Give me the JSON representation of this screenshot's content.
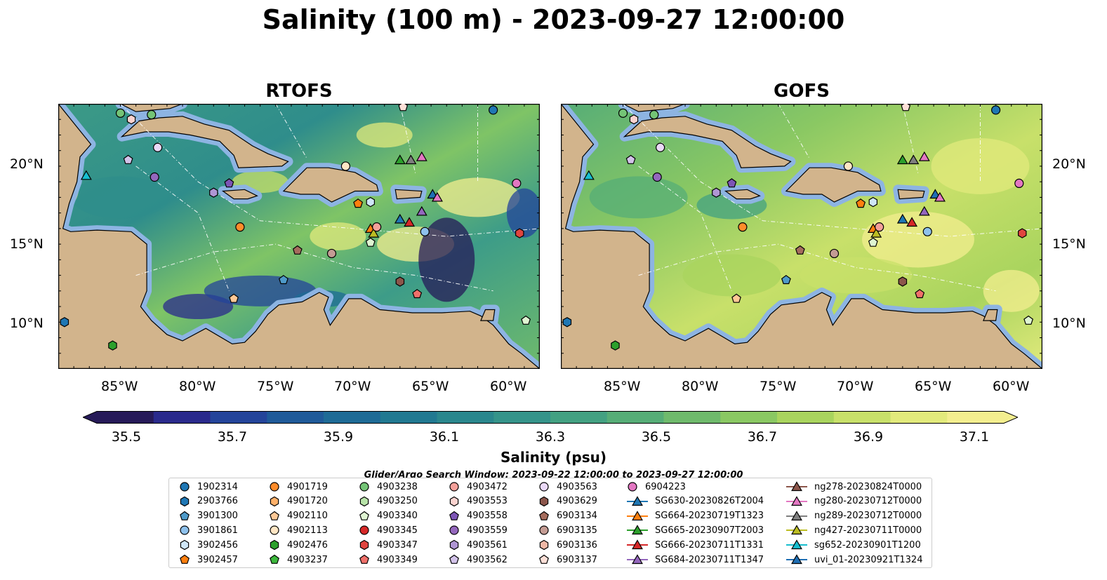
{
  "title": "Salinity (100 m) - 2023-09-27 12:00:00",
  "panels": [
    {
      "title": "RTOFS",
      "model": "rtofs"
    },
    {
      "title": "GOFS",
      "model": "gofs"
    }
  ],
  "map": {
    "lon_labels": [
      "85°W",
      "80°W",
      "75°W",
      "70°W",
      "65°W",
      "60°W"
    ],
    "lat_labels": [
      "20°N",
      "15°N",
      "10°N"
    ],
    "extent": {
      "lon": [
        -89,
        -58
      ],
      "lat": [
        7,
        24
      ]
    }
  },
  "colorbar": {
    "label": "Salinity (psu)",
    "ticks": [
      "35.5",
      "35.7",
      "35.9",
      "36.1",
      "36.3",
      "36.5",
      "36.7",
      "36.9",
      "37.1"
    ],
    "min": 35.4,
    "max": 37.2,
    "step": 0.1,
    "extend": "both",
    "colors": [
      "#261a58",
      "#2a2a8c",
      "#24449a",
      "#1f5a99",
      "#1e6b96",
      "#217991",
      "#2a878d",
      "#35948a",
      "#43a182",
      "#56ad77",
      "#6fba6c",
      "#8ac863",
      "#a9d45e",
      "#c8e06a",
      "#e2ea7c",
      "#f3ee8f"
    ]
  },
  "search_window": "Glider/Argo Search Window: 2023-09-22 12:00:00 to 2023-09-27 12:00:00",
  "legend": [
    {
      "label": "1902314",
      "color": "#1f77b4",
      "shape": "circle"
    },
    {
      "label": "2903766",
      "color": "#1f77b4",
      "shape": "hexagon"
    },
    {
      "label": "3901300",
      "color": "#4e9ac9",
      "shape": "pentagon"
    },
    {
      "label": "3901861",
      "color": "#8ec1ec",
      "shape": "circle"
    },
    {
      "label": "3902456",
      "color": "#cfe6f7",
      "shape": "hexagon"
    },
    {
      "label": "3902457",
      "color": "#ff7f0e",
      "shape": "pentagon"
    },
    {
      "label": "4901719",
      "color": "#ff8c2a",
      "shape": "circle"
    },
    {
      "label": "4901720",
      "color": "#ffb16a",
      "shape": "hexagon"
    },
    {
      "label": "4902110",
      "color": "#ffc896",
      "shape": "pentagon"
    },
    {
      "label": "4902113",
      "color": "#ffe6c4",
      "shape": "circle"
    },
    {
      "label": "4902476",
      "color": "#2ca02c",
      "shape": "hexagon"
    },
    {
      "label": "4903237",
      "color": "#3cb83c",
      "shape": "pentagon"
    },
    {
      "label": "4903238",
      "color": "#74c476",
      "shape": "circle"
    },
    {
      "label": "4903250",
      "color": "#b7e3a8",
      "shape": "hexagon"
    },
    {
      "label": "4903340",
      "color": "#dff5d2",
      "shape": "pentagon"
    },
    {
      "label": "4903345",
      "color": "#d62728",
      "shape": "circle"
    },
    {
      "label": "4903347",
      "color": "#e0453f",
      "shape": "hexagon"
    },
    {
      "label": "4903349",
      "color": "#f0706a",
      "shape": "pentagon"
    },
    {
      "label": "4903472",
      "color": "#f4a09a",
      "shape": "circle"
    },
    {
      "label": "4903553",
      "color": "#fbd3cf",
      "shape": "hexagon"
    },
    {
      "label": "4903558",
      "color": "#7d55b5",
      "shape": "pentagon"
    },
    {
      "label": "4903559",
      "color": "#9467bd",
      "shape": "circle"
    },
    {
      "label": "4903561",
      "color": "#b096d4",
      "shape": "hexagon"
    },
    {
      "label": "4903562",
      "color": "#d3c3ea",
      "shape": "pentagon"
    },
    {
      "label": "4903563",
      "color": "#ead9f8",
      "shape": "circle"
    },
    {
      "label": "4903629",
      "color": "#8c564b",
      "shape": "hexagon"
    },
    {
      "label": "6903134",
      "color": "#a56c5d",
      "shape": "pentagon"
    },
    {
      "label": "6903135",
      "color": "#c49c94",
      "shape": "circle"
    },
    {
      "label": "6903136",
      "color": "#f0b8a6",
      "shape": "hexagon"
    },
    {
      "label": "6903137",
      "color": "#fde0d8",
      "shape": "pentagon"
    },
    {
      "label": "6904223",
      "color": "#e377c2",
      "shape": "circle"
    },
    {
      "label": "SG630-20230826T2004",
      "color": "#1f77b4",
      "shape": "triangle"
    },
    {
      "label": "SG664-20230719T1323",
      "color": "#ff7f0e",
      "shape": "triangle"
    },
    {
      "label": "SG665-20230907T2003",
      "color": "#2ca02c",
      "shape": "triangle"
    },
    {
      "label": "SG666-20230711T1331",
      "color": "#d62728",
      "shape": "triangle"
    },
    {
      "label": "SG684-20230711T1347",
      "color": "#9467bd",
      "shape": "triangle"
    },
    {
      "label": "ng278-20230824T0000",
      "color": "#8c564b",
      "shape": "triangle"
    },
    {
      "label": "ng280-20230712T0000",
      "color": "#e377c2",
      "shape": "triangle"
    },
    {
      "label": "ng289-20230712T0000",
      "color": "#7f7f7f",
      "shape": "triangle"
    },
    {
      "label": "ng427-20230711T0000",
      "color": "#bcbd22",
      "shape": "triangle"
    },
    {
      "label": "sg652-20230901T1200",
      "color": "#17becf",
      "shape": "triangle"
    },
    {
      "label": "uvi_01-20230921T1324",
      "color": "#1f6fb4",
      "shape": "triangle"
    }
  ],
  "observations": [
    {
      "id": "4903238",
      "lon": -85.0,
      "lat": 23.4
    },
    {
      "id": "4903553",
      "lon": -84.3,
      "lat": 23.0
    },
    {
      "id": "4903238",
      "lon": -83.0,
      "lat": 23.3
    },
    {
      "id": "4903563",
      "lon": -82.6,
      "lat": 21.2
    },
    {
      "id": "4903562",
      "lon": -84.5,
      "lat": 20.4
    },
    {
      "id": "4903559",
      "lon": -82.8,
      "lat": 19.3
    },
    {
      "id": "4903561",
      "lon": -79.0,
      "lat": 18.3
    },
    {
      "id": "4903558",
      "lon": -78.0,
      "lat": 18.9
    },
    {
      "id": "sg652-20230901T1200",
      "lon": -87.2,
      "lat": 19.4
    },
    {
      "id": "4902113",
      "lon": -70.5,
      "lat": 20.0
    },
    {
      "id": "3902457",
      "lon": -69.7,
      "lat": 17.6
    },
    {
      "id": "3902456",
      "lon": -68.9,
      "lat": 17.7
    },
    {
      "id": "6903137",
      "lon": -66.8,
      "lat": 23.8
    },
    {
      "id": "1902314",
      "lon": -61.0,
      "lat": 23.6
    },
    {
      "id": "SG665-20230907T2003",
      "lon": -67.0,
      "lat": 20.4
    },
    {
      "id": "ng289-20230712T0000",
      "lon": -66.3,
      "lat": 20.4
    },
    {
      "id": "ng280-20230712T0000",
      "lon": -65.6,
      "lat": 20.6
    },
    {
      "id": "uvi_01-20230921T1324",
      "lon": -64.9,
      "lat": 18.2
    },
    {
      "id": "ng280-20230712T0000",
      "lon": -64.6,
      "lat": 18.0
    },
    {
      "id": "SG684-20230711T1347",
      "lon": -65.6,
      "lat": 17.1
    },
    {
      "id": "SG630-20230826T2004",
      "lon": -67.0,
      "lat": 16.6
    },
    {
      "id": "SG666-20230711T1331",
      "lon": -66.4,
      "lat": 16.4
    },
    {
      "id": "3901861",
      "lon": -65.4,
      "lat": 15.8
    },
    {
      "id": "6904223",
      "lon": -59.5,
      "lat": 18.9
    },
    {
      "id": "4903347",
      "lon": -59.3,
      "lat": 15.7
    },
    {
      "id": "SG664-20230719T1323",
      "lon": -68.9,
      "lat": 16.0
    },
    {
      "id": "ng427-20230711T0000",
      "lon": -68.7,
      "lat": 15.7
    },
    {
      "id": "4903472",
      "lon": -68.5,
      "lat": 16.1
    },
    {
      "id": "4903340",
      "lon": -68.9,
      "lat": 15.1
    },
    {
      "id": "4901719",
      "lon": -77.3,
      "lat": 16.1
    },
    {
      "id": "6903134",
      "lon": -73.6,
      "lat": 14.6
    },
    {
      "id": "6903135",
      "lon": -71.4,
      "lat": 14.4
    },
    {
      "id": "3901300",
      "lon": -74.5,
      "lat": 12.7
    },
    {
      "id": "4903629",
      "lon": -67.0,
      "lat": 12.6
    },
    {
      "id": "4903349",
      "lon": -65.9,
      "lat": 11.8
    },
    {
      "id": "4902110",
      "lon": -77.7,
      "lat": 11.5
    },
    {
      "id": "2903766",
      "lon": -88.6,
      "lat": 10.0
    },
    {
      "id": "4902476",
      "lon": -85.5,
      "lat": 8.5
    },
    {
      "id": "4903340",
      "lon": -58.9,
      "lat": 10.1
    }
  ]
}
